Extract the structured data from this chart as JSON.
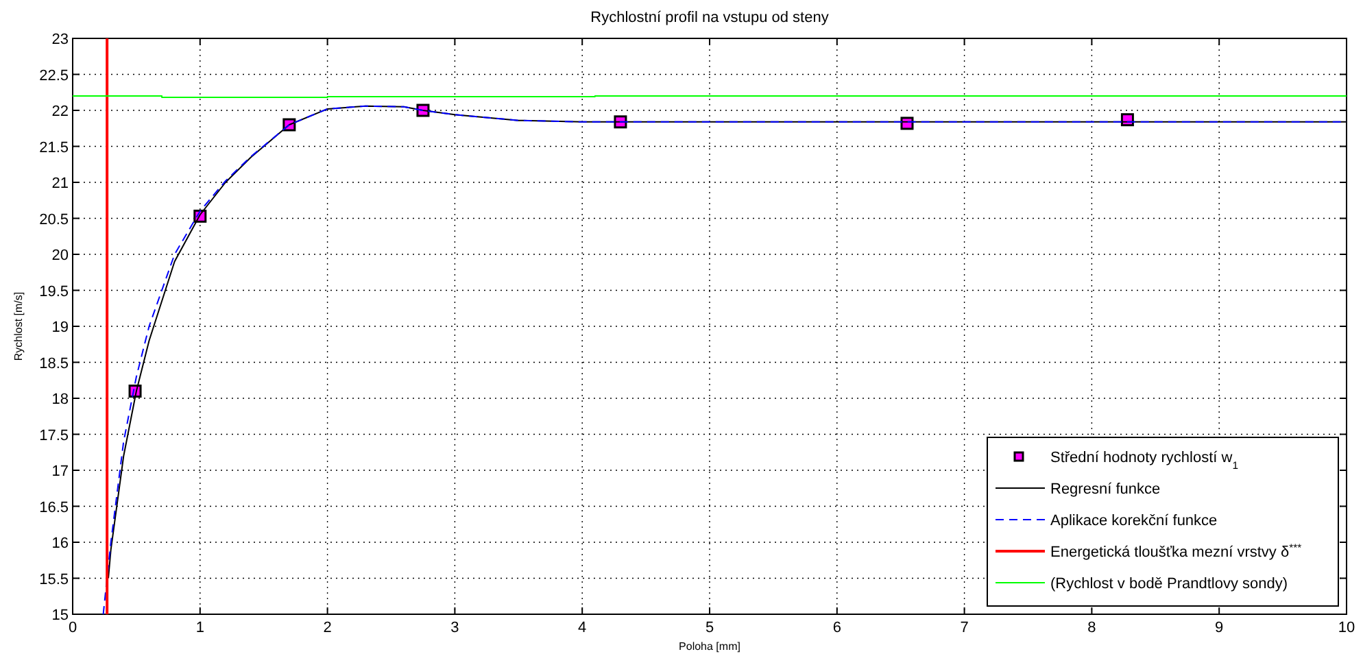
{
  "chart_data": {
    "type": "line",
    "title": "Rychlostní profil na vstupu od steny",
    "xlabel": "Poloha [mm]",
    "ylabel": "Rychlost [m/s]",
    "xlim": [
      0,
      10
    ],
    "ylim": [
      15,
      23
    ],
    "xticks": [
      0,
      1,
      2,
      3,
      4,
      5,
      6,
      7,
      8,
      9,
      10
    ],
    "yticks": [
      15,
      15.5,
      16,
      16.5,
      17,
      17.5,
      18,
      18.5,
      19,
      19.5,
      20,
      20.5,
      21,
      21.5,
      22,
      22.5,
      23
    ],
    "grid": true,
    "legend": "bottom right",
    "series": [
      {
        "name": "Střední hodnoty rychlostí w$_{1}$",
        "type": "scatter",
        "marker": "square",
        "color": "#ff00ff",
        "x": [
          0.49,
          1.0,
          1.7,
          2.75,
          4.3,
          6.55,
          8.28
        ],
        "values": [
          18.1,
          20.53,
          21.8,
          22.0,
          21.84,
          21.82,
          21.87
        ]
      },
      {
        "name": "Regresní funkce",
        "line_style": "solid",
        "color": "#000000",
        "x": [
          0.28,
          0.3,
          0.4,
          0.5,
          0.6,
          0.8,
          1.0,
          1.2,
          1.4,
          1.7,
          2.0,
          2.3,
          2.6,
          2.75,
          3.0,
          3.5,
          4.0,
          10
        ],
        "values": [
          15.5,
          15.9,
          17.2,
          18.1,
          18.8,
          19.9,
          20.55,
          21.0,
          21.35,
          21.8,
          22.02,
          22.06,
          22.05,
          22.0,
          21.94,
          21.86,
          21.84,
          21.84
        ]
      },
      {
        "name": "Aplikace korekční funkce",
        "line_style": "dashed",
        "color": "#0000ff",
        "x": [
          0.24,
          0.3,
          0.4,
          0.5,
          0.6,
          0.8,
          1.0,
          1.2,
          1.4,
          1.7,
          2.0,
          2.3,
          2.6,
          2.75,
          3.0,
          3.5,
          4.0,
          10
        ],
        "values": [
          15.0,
          16.0,
          17.4,
          18.3,
          19.0,
          20.0,
          20.6,
          21.02,
          21.36,
          21.8,
          22.02,
          22.06,
          22.05,
          22.0,
          21.94,
          21.86,
          21.84,
          21.84
        ]
      },
      {
        "name": "Energetická tloušťka mezní vrstvy δ$^{***}$",
        "line_style": "solid",
        "color": "#ff0000",
        "x": [
          0.27,
          0.27
        ],
        "values": [
          15,
          23
        ]
      },
      {
        "name": "(Rychlost v bodě Prandtlovy sondy)",
        "line_style": "solid",
        "color": "#00ff00",
        "x": [
          0,
          0.7,
          0.7,
          2.0,
          2.0,
          4.1,
          4.1,
          10
        ],
        "values": [
          22.2,
          22.2,
          22.18,
          22.18,
          22.19,
          22.19,
          22.2,
          22.2
        ]
      }
    ]
  }
}
